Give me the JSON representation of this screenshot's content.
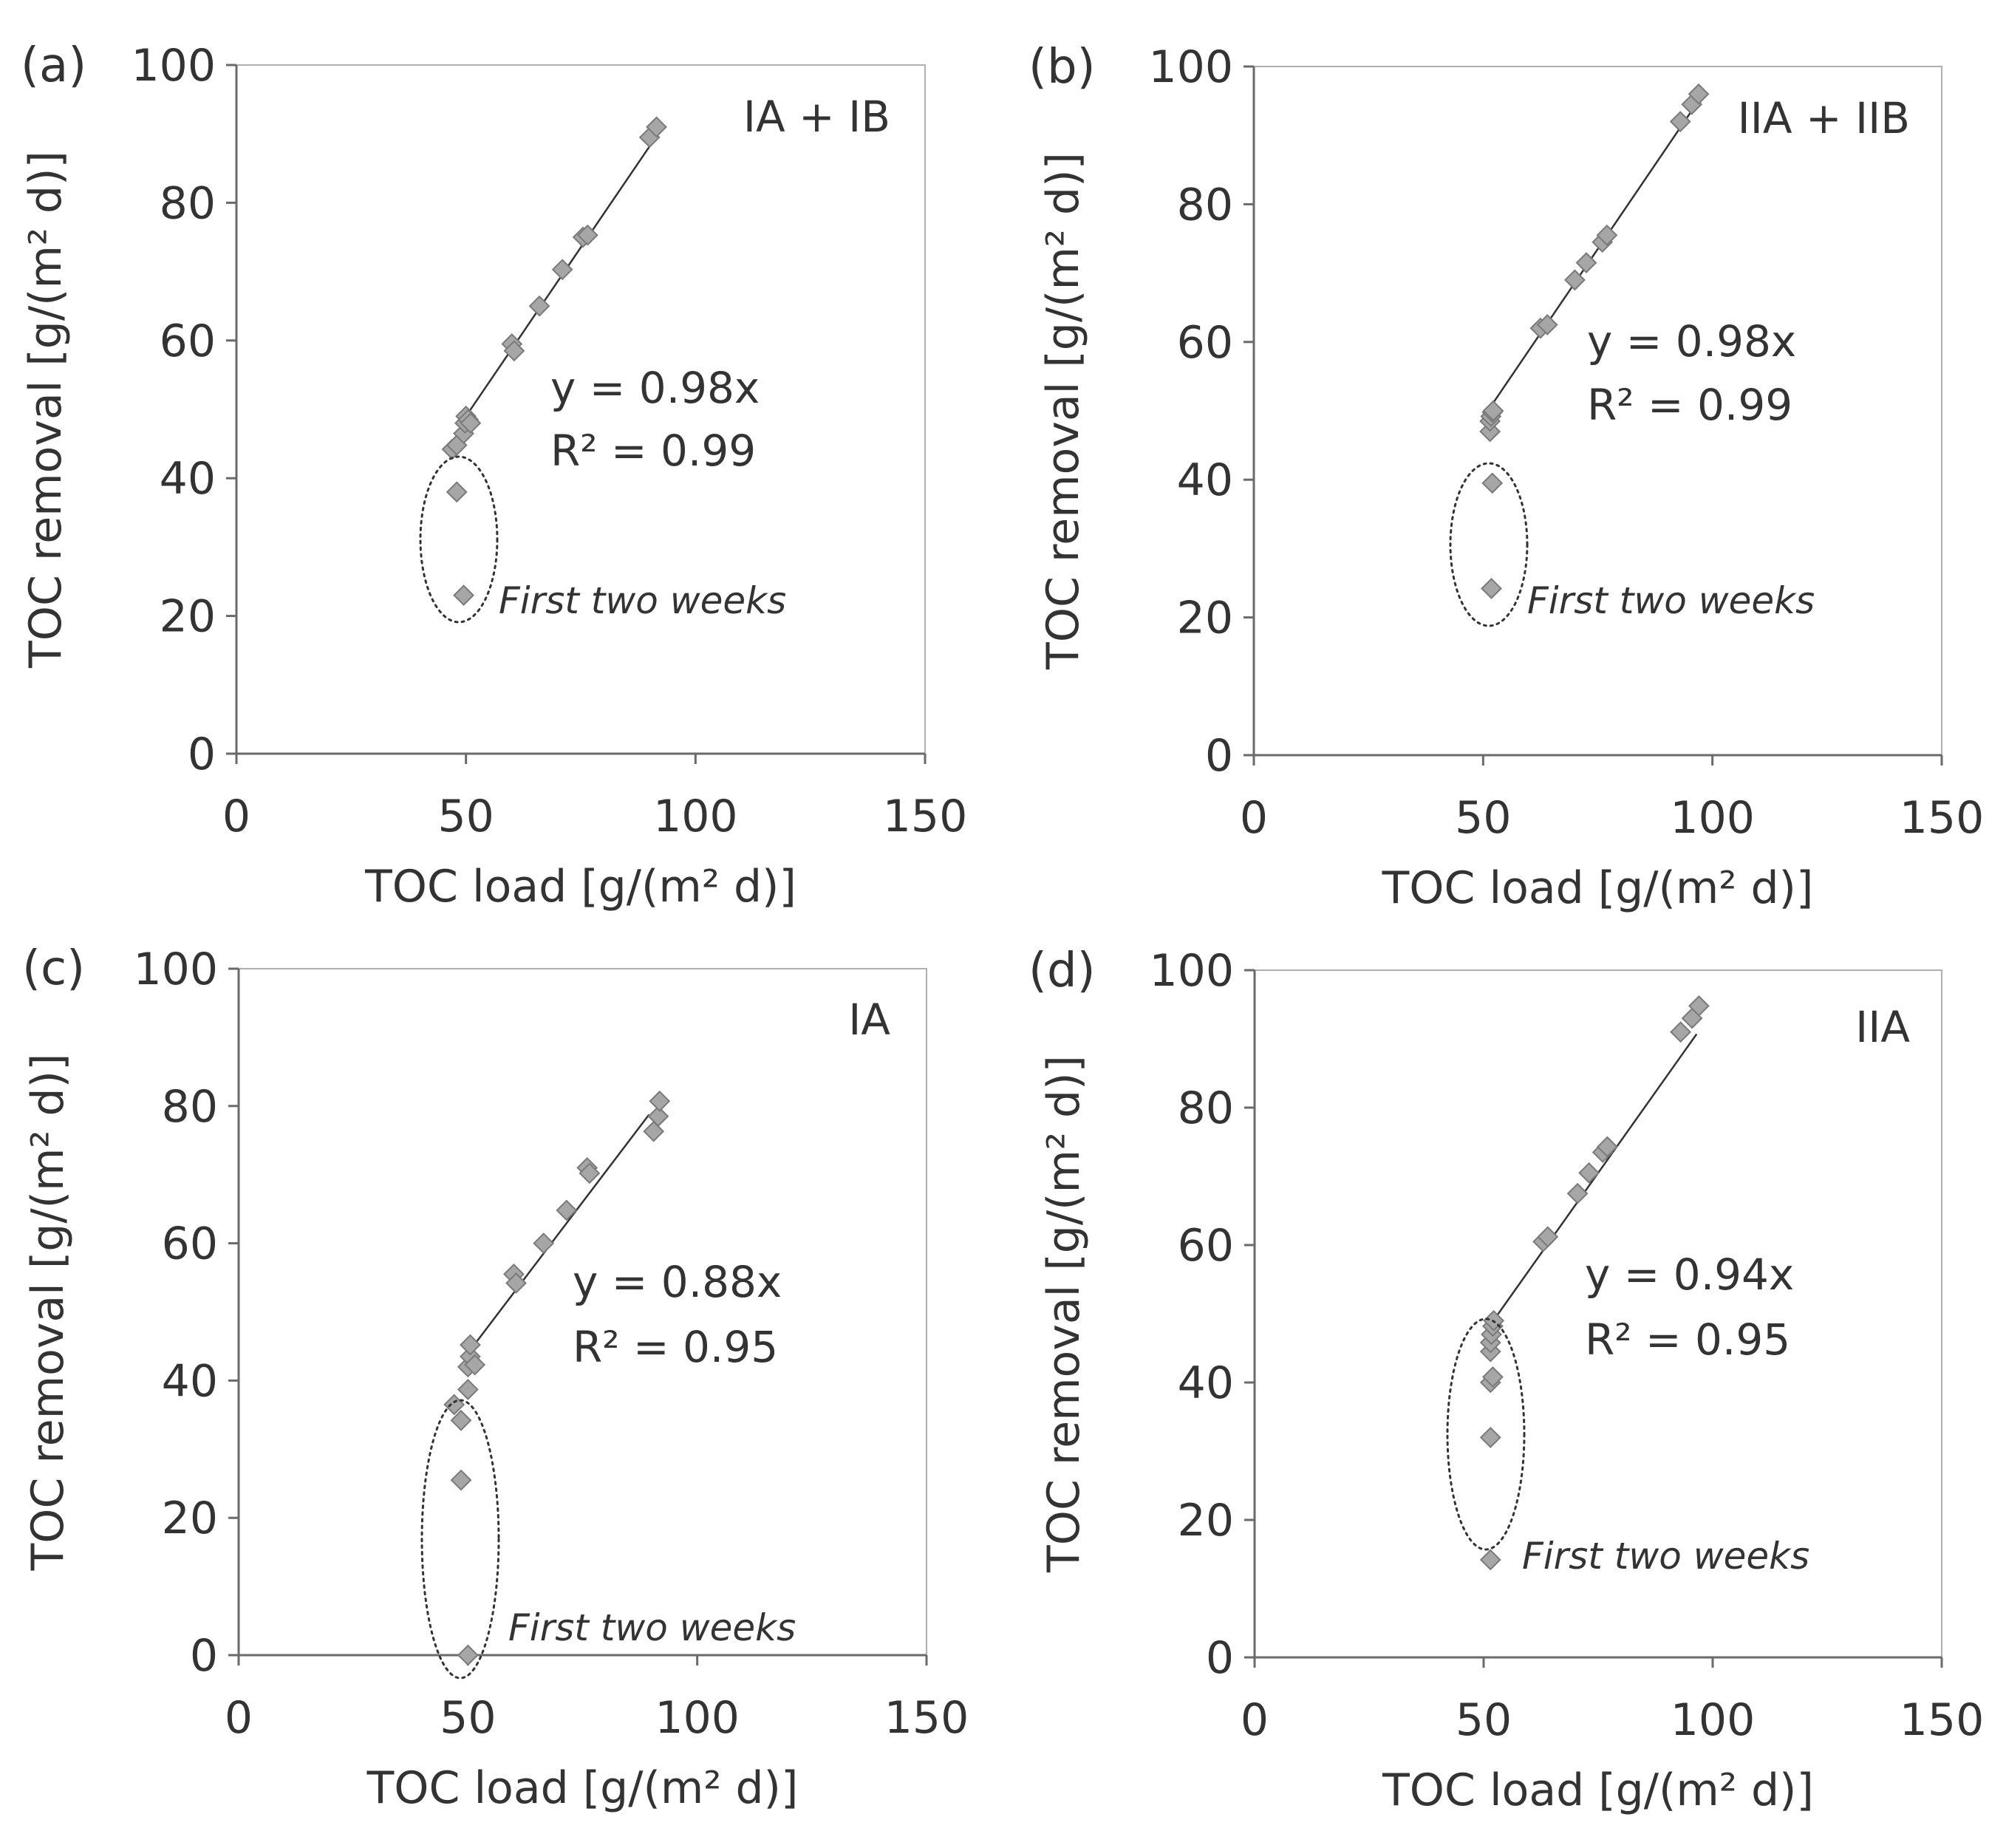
{
  "chart_data": [
    {
      "type": "scatter",
      "panel_label": "(a)",
      "corner_label": "IA + IB",
      "xlabel": "TOC load [g/(m² d)]",
      "ylabel": "TOC removal [g/(m² d)]",
      "xlim": [
        0,
        150
      ],
      "ylim": [
        0,
        100
      ],
      "xticks": [
        "0",
        "50",
        "100",
        "150"
      ],
      "yticks": [
        "0",
        "20",
        "40",
        "60",
        "80",
        "100"
      ],
      "grid": false,
      "series": [
        {
          "name": "TOC removal",
          "points": [
            [
              47,
              44.2
            ],
            [
              48,
              44.8
            ],
            [
              49.5,
              46.5
            ],
            [
              49.8,
              48.0
            ],
            [
              50,
              49.0
            ],
            [
              50.5,
              48.5
            ],
            [
              51,
              48.0
            ],
            [
              60,
              59.5
            ],
            [
              60.5,
              58.5
            ],
            [
              66,
              65.0
            ],
            [
              71,
              70.3
            ],
            [
              75.5,
              75.0
            ],
            [
              76.5,
              75.3
            ],
            [
              90,
              89.5
            ],
            [
              91.5,
              91.0
            ]
          ]
        }
      ],
      "outliers": [
        [
          48,
          38.0
        ],
        [
          49.5,
          23.0
        ]
      ],
      "fit": {
        "equation": "y = 0.98x",
        "r2": "R² = 0.99",
        "slope": 0.98,
        "x_range": [
          49,
          91.5
        ]
      },
      "annotation": "First two weeks"
    },
    {
      "type": "scatter",
      "panel_label": "(b)",
      "corner_label": "IIA + IIB",
      "xlabel": "TOC load [g/(m² d)]",
      "ylabel": "TOC removal [g/(m² d)]",
      "xlim": [
        0,
        150
      ],
      "ylim": [
        0,
        100
      ],
      "xticks": [
        "0",
        "50",
        "100",
        "150"
      ],
      "yticks": [
        "0",
        "20",
        "40",
        "60",
        "80",
        "100"
      ],
      "grid": false,
      "series": [
        {
          "name": "TOC removal",
          "points": [
            [
              51.5,
              47.0
            ],
            [
              51.5,
              48.5
            ],
            [
              51.7,
              49.2
            ],
            [
              52,
              49.8
            ],
            [
              52.2,
              50.0
            ],
            [
              62.5,
              62.0
            ],
            [
              64,
              62.5
            ],
            [
              70,
              69.0
            ],
            [
              72.5,
              71.5
            ],
            [
              76,
              74.5
            ],
            [
              77,
              75.5
            ],
            [
              93,
              92.0
            ],
            [
              95.5,
              94.5
            ],
            [
              97,
              96.0
            ]
          ]
        }
      ],
      "outliers": [
        [
          52,
          39.5
        ],
        [
          51.8,
          24.2
        ]
      ],
      "fit": {
        "equation": "y = 0.98x",
        "r2": "R² = 0.99",
        "slope": 0.98,
        "x_range": [
          51.5,
          96
        ]
      },
      "annotation": "First two weeks"
    },
    {
      "type": "scatter",
      "panel_label": "(c)",
      "corner_label": "IA",
      "xlabel": "TOC load [g/(m² d)]",
      "ylabel": "TOC removal [g/(m² d)]",
      "xlim": [
        0,
        150
      ],
      "ylim": [
        0,
        100
      ],
      "xticks": [
        "0",
        "50",
        "100",
        "150"
      ],
      "yticks": [
        "0",
        "20",
        "40",
        "60",
        "80",
        "100"
      ],
      "grid": false,
      "series": [
        {
          "name": "TOC removal",
          "points": [
            [
              47,
              36.5
            ],
            [
              48.5,
              34.2
            ],
            [
              50,
              38.7
            ],
            [
              50,
              42.0
            ],
            [
              50.5,
              43.5
            ],
            [
              50.5,
              45.2
            ],
            [
              51.5,
              42.3
            ],
            [
              60,
              55.5
            ],
            [
              60.5,
              54.2
            ],
            [
              66.5,
              60.0
            ],
            [
              71.5,
              64.8
            ],
            [
              76,
              71.0
            ],
            [
              76.5,
              70.2
            ],
            [
              90.5,
              76.3
            ],
            [
              91.5,
              78.5
            ],
            [
              91.8,
              80.7
            ]
          ]
        }
      ],
      "outliers": [
        [
          48.5,
          25.5
        ],
        [
          50,
          0.0
        ]
      ],
      "fit": {
        "equation": "y = 0.88x",
        "r2": "R² = 0.95",
        "slope": 0.88,
        "x_range": [
          49.5,
          89.5
        ]
      },
      "annotation": "First two weeks"
    },
    {
      "type": "scatter",
      "panel_label": "(d)",
      "corner_label": "IIA",
      "xlabel": "TOC load [g/(m² d)]",
      "ylabel": "TOC removal [g/(m² d)]",
      "xlim": [
        0,
        150
      ],
      "ylim": [
        0,
        100
      ],
      "xticks": [
        "0",
        "50",
        "100",
        "150"
      ],
      "yticks": [
        "0",
        "20",
        "40",
        "60",
        "80",
        "100"
      ],
      "grid": false,
      "series": [
        {
          "name": "TOC removal",
          "points": [
            [
              51.5,
              40.0
            ],
            [
              52,
              40.8
            ],
            [
              51.5,
              44.5
            ],
            [
              51.5,
              45.8
            ],
            [
              51.7,
              47.0
            ],
            [
              52,
              48.2
            ],
            [
              52.2,
              49.0
            ],
            [
              63,
              60.5
            ],
            [
              64,
              61.2
            ],
            [
              70.5,
              67.5
            ],
            [
              73,
              70.5
            ],
            [
              76,
              73.5
            ],
            [
              77,
              74.3
            ],
            [
              93,
              91.0
            ],
            [
              95.5,
              93.0
            ],
            [
              97,
              94.8
            ]
          ]
        }
      ],
      "outliers": [
        [
          51.5,
          32.0
        ],
        [
          51.5,
          14.2
        ]
      ],
      "fit": {
        "equation": "y = 0.94x",
        "r2": "R² = 0.95",
        "slope": 0.94,
        "x_range": [
          51.5,
          96.5
        ]
      },
      "annotation": "First two weeks"
    }
  ]
}
